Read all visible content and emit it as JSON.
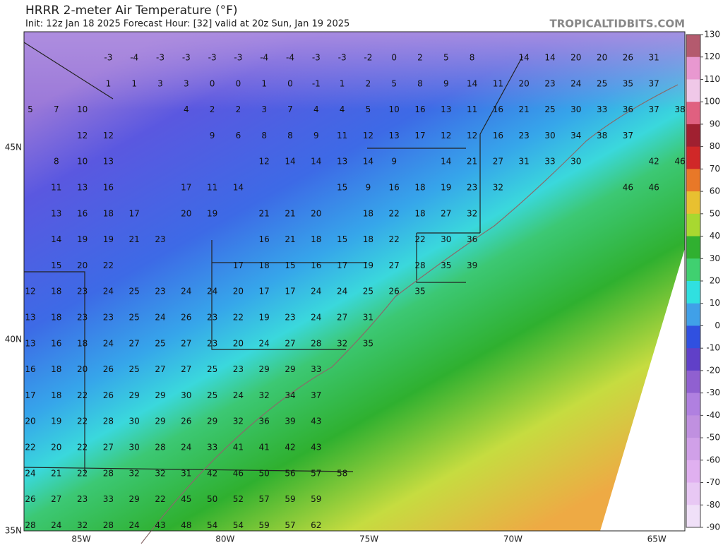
{
  "header": {
    "title": "HRRR 2-meter Air Temperature (°F)",
    "subtitle": "Init: 12z Jan 18 2025   Forecast Hour: [32]   valid at 20z Sun, Jan 19 2025",
    "watermark": "TROPICALTIDBITS.COM"
  },
  "axes": {
    "lat": [
      "45N",
      "40N",
      "35N"
    ],
    "lon": [
      "85W",
      "80W",
      "75W",
      "70W",
      "65W"
    ]
  },
  "colorbar": {
    "ticks": [
      130,
      120,
      110,
      100,
      90,
      80,
      70,
      60,
      50,
      40,
      30,
      20,
      10,
      0,
      -10,
      -20,
      -30,
      -40,
      -50,
      -60,
      -70,
      -80,
      -90
    ],
    "colors": [
      "#b45a6e",
      "#e898d0",
      "#f0c8e8",
      "#e06080",
      "#a02030",
      "#d02828",
      "#e87828",
      "#e8c030",
      "#a8d830",
      "#30b030",
      "#40d070",
      "#30e0e0",
      "#40a0e8",
      "#3050e0",
      "#6040c8",
      "#9060d0",
      "#b080e0",
      "#c090e0",
      "#d0a0e8",
      "#e0b0f0",
      "#e8c8f4",
      "#f0e0f8"
    ]
  },
  "grid": {
    "rows": [
      [
        null,
        null,
        null,
        -3,
        -4,
        -3,
        -3,
        -3,
        -3,
        -4,
        -4,
        -3,
        -3,
        -2,
        0,
        2,
        5,
        8,
        null,
        14,
        14,
        20,
        20,
        26,
        31,
        null
      ],
      [
        null,
        null,
        null,
        1,
        1,
        3,
        3,
        0,
        0,
        1,
        0,
        -1,
        1,
        2,
        5,
        8,
        9,
        14,
        11,
        20,
        23,
        24,
        25,
        35,
        37,
        null
      ],
      [
        5,
        7,
        10,
        null,
        null,
        null,
        4,
        2,
        2,
        3,
        7,
        4,
        4,
        5,
        10,
        16,
        13,
        11,
        16,
        21,
        25,
        30,
        33,
        36,
        37,
        38
      ],
      [
        null,
        null,
        12,
        12,
        null,
        null,
        null,
        9,
        6,
        8,
        8,
        9,
        11,
        12,
        13,
        17,
        12,
        12,
        16,
        23,
        30,
        34,
        38,
        37,
        null,
        null
      ],
      [
        null,
        8,
        10,
        13,
        null,
        null,
        null,
        null,
        null,
        12,
        14,
        14,
        13,
        14,
        9,
        null,
        14,
        21,
        27,
        31,
        33,
        30,
        null,
        null,
        42,
        46
      ],
      [
        null,
        11,
        13,
        16,
        null,
        null,
        17,
        11,
        14,
        null,
        null,
        null,
        15,
        9,
        16,
        18,
        19,
        23,
        32,
        null,
        null,
        null,
        null,
        46,
        46,
        null
      ],
      [
        null,
        13,
        16,
        18,
        17,
        null,
        20,
        19,
        null,
        21,
        21,
        20,
        null,
        18,
        22,
        18,
        27,
        32,
        null,
        null,
        null,
        null,
        null,
        null,
        null,
        null
      ],
      [
        null,
        14,
        19,
        19,
        21,
        23,
        null,
        null,
        null,
        16,
        21,
        18,
        15,
        18,
        22,
        22,
        30,
        36,
        null,
        null,
        null,
        null,
        null,
        null,
        null,
        null
      ],
      [
        null,
        15,
        20,
        22,
        null,
        null,
        null,
        null,
        17,
        18,
        15,
        16,
        17,
        19,
        27,
        28,
        35,
        39,
        null,
        null,
        null,
        null,
        null,
        null,
        null,
        null
      ],
      [
        12,
        18,
        23,
        24,
        25,
        23,
        24,
        24,
        20,
        17,
        17,
        24,
        24,
        25,
        26,
        35,
        null,
        null,
        null,
        null,
        null,
        null,
        null,
        null,
        null,
        null
      ],
      [
        13,
        18,
        23,
        23,
        25,
        24,
        26,
        23,
        22,
        19,
        23,
        24,
        27,
        31,
        null,
        null,
        null,
        null,
        null,
        null,
        null,
        null,
        null,
        null,
        null,
        null
      ],
      [
        13,
        16,
        18,
        24,
        27,
        25,
        27,
        23,
        20,
        24,
        27,
        28,
        32,
        35,
        null,
        null,
        null,
        null,
        null,
        null,
        null,
        null,
        null,
        null,
        null,
        null
      ],
      [
        16,
        18,
        20,
        26,
        25,
        27,
        27,
        25,
        23,
        29,
        29,
        33,
        null,
        null,
        null,
        null,
        null,
        null,
        null,
        null,
        null,
        null,
        null,
        null,
        null,
        null
      ],
      [
        17,
        18,
        22,
        26,
        29,
        29,
        30,
        25,
        24,
        32,
        34,
        37,
        null,
        null,
        null,
        null,
        null,
        null,
        null,
        null,
        null,
        null,
        null,
        null,
        null,
        null
      ],
      [
        20,
        19,
        22,
        28,
        30,
        29,
        26,
        29,
        32,
        36,
        39,
        43,
        null,
        null,
        null,
        null,
        null,
        null,
        null,
        null,
        null,
        null,
        null,
        null,
        null,
        null
      ],
      [
        22,
        20,
        22,
        27,
        30,
        28,
        24,
        33,
        41,
        41,
        42,
        43,
        null,
        null,
        null,
        null,
        null,
        null,
        null,
        null,
        null,
        null,
        null,
        null,
        null,
        null
      ],
      [
        24,
        21,
        22,
        28,
        32,
        32,
        31,
        42,
        46,
        50,
        56,
        57,
        58,
        null,
        null,
        null,
        null,
        null,
        null,
        null,
        null,
        null,
        null,
        null,
        null,
        null
      ],
      [
        26,
        27,
        23,
        33,
        29,
        22,
        45,
        50,
        52,
        57,
        59,
        59,
        null,
        null,
        null,
        null,
        null,
        null,
        null,
        null,
        null,
        null,
        null,
        null,
        null,
        null
      ],
      [
        28,
        24,
        32,
        28,
        24,
        43,
        48,
        54,
        54,
        59,
        57,
        62,
        null,
        null,
        null,
        null,
        null,
        null,
        null,
        null,
        null,
        null,
        null,
        null,
        null,
        null
      ]
    ]
  }
}
